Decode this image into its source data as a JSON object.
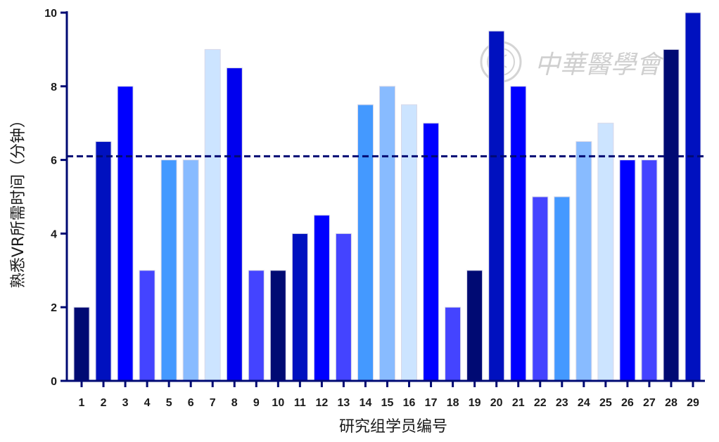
{
  "chart_data": {
    "type": "bar",
    "categories": [
      "1",
      "2",
      "3",
      "4",
      "5",
      "6",
      "7",
      "8",
      "9",
      "10",
      "11",
      "12",
      "13",
      "14",
      "15",
      "16",
      "17",
      "18",
      "19",
      "20",
      "21",
      "22",
      "23",
      "24",
      "25",
      "26",
      "27",
      "28",
      "29"
    ],
    "values": [
      2,
      6.5,
      8,
      3,
      6,
      6,
      9,
      8.5,
      3,
      3,
      4,
      4.5,
      4,
      7.5,
      8,
      7.5,
      7,
      2,
      3,
      9.5,
      8,
      5,
      5,
      6.5,
      7,
      6,
      6,
      9,
      10
    ],
    "bar_colors": [
      "#000a73",
      "#0011bf",
      "#0000ff",
      "#4444ff",
      "#4499ff",
      "#88bbff",
      "#cce4ff",
      "#0000ee",
      "#4444ff",
      "#000a73",
      "#0011bf",
      "#0000ff",
      "#4444ff",
      "#4499ff",
      "#88bbff",
      "#cce4ff",
      "#0000ff",
      "#4444ff",
      "#000a73",
      "#0011bf",
      "#0000ff",
      "#4444ff",
      "#4499ff",
      "#88bbff",
      "#cce4ff",
      "#0000ff",
      "#4444ff",
      "#000a73",
      "#0011bf"
    ],
    "reference_line": {
      "value": 6.1,
      "style": "dashed",
      "color": "#000a73"
    },
    "xlabel": "研究组学员编号",
    "ylabel": "熟悉VR所需时间（分钟）",
    "ylim": [
      0,
      10
    ],
    "yticks": [
      "0",
      "2",
      "4",
      "6",
      "8",
      "10"
    ],
    "grid": false,
    "legend": "none"
  },
  "watermark": {
    "text": "中華醫學會",
    "icon": "medical-association-seal-icon",
    "color": "#cfcfcf"
  },
  "axis_color": "#000a73"
}
